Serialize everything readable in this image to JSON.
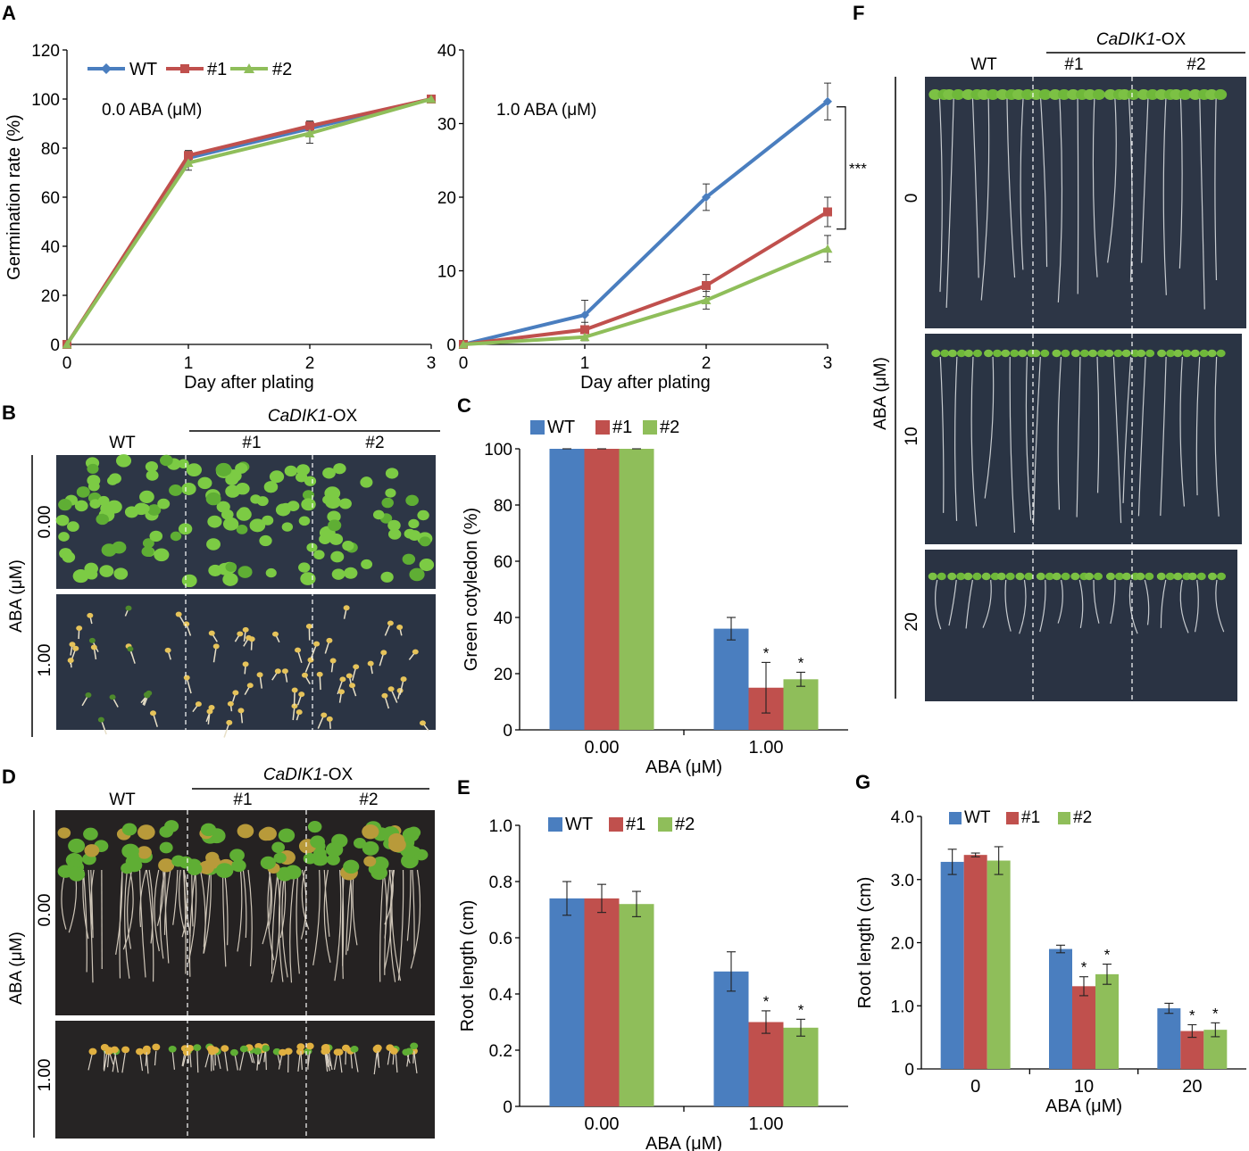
{
  "colors": {
    "wt": "#4a7ebf",
    "l1": "#c0504d",
    "l2": "#8fbe5a",
    "plate": "#2d3646",
    "plate_dark": "#262d3a",
    "seedling": "#6fbf3a",
    "root": "#dcdcdc",
    "yellow": "#e6c35a"
  },
  "panel_letters": {
    "a": "A",
    "b": "B",
    "c": "C",
    "d": "D",
    "e": "E",
    "f": "F",
    "g": "G"
  },
  "legend": {
    "wt": "WT",
    "l1": "#1",
    "l2": "#2"
  },
  "photo_b": {
    "transgene": "CaDIK1",
    "suffix": "-OX",
    "col_wt": "WT",
    "col_1": "#1",
    "col_2": "#2",
    "ylabel": "ABA (μM)",
    "row_top": "0.00",
    "row_bottom": "1.00"
  },
  "photo_d": {
    "transgene": "CaDIK1",
    "suffix": "-OX",
    "col_wt": "WT",
    "col_1": "#1",
    "col_2": "#2",
    "ylabel": "ABA (μM)",
    "row_top": "0.00",
    "row_bottom": "1.00"
  },
  "photo_f": {
    "transgene": "CaDIK1",
    "suffix": "-OX",
    "col_wt": "WT",
    "col_1": "#1",
    "col_2": "#2",
    "ylabel": "ABA (μM)",
    "row_1": "0",
    "row_2": "10",
    "row_3": "20"
  },
  "chart_data": [
    {
      "id": "A1",
      "type": "line",
      "annotation": "0.0 ABA (μM)",
      "xlabel": "Day after plating",
      "ylabel": "Germination rate (%)",
      "x": [
        0,
        1,
        2,
        3
      ],
      "xlim": [
        0,
        3
      ],
      "ylim": [
        0,
        120
      ],
      "yticks": [
        0,
        20,
        40,
        60,
        80,
        100,
        120
      ],
      "series": [
        {
          "name": "WT",
          "values": [
            0,
            76,
            88,
            100
          ],
          "errors": [
            0,
            3,
            3,
            0
          ]
        },
        {
          "name": "#1",
          "values": [
            0,
            77,
            89,
            100
          ],
          "errors": [
            0,
            2,
            2,
            0
          ]
        },
        {
          "name": "#2",
          "values": [
            0,
            74,
            86,
            100
          ],
          "errors": [
            0,
            3,
            4,
            1
          ]
        }
      ]
    },
    {
      "id": "A2",
      "type": "line",
      "annotation": "1.0 ABA (μM)",
      "xlabel": "Day after plating",
      "ylabel": "",
      "x": [
        0,
        1,
        2,
        3
      ],
      "xlim": [
        0,
        3
      ],
      "ylim": [
        0,
        40
      ],
      "yticks": [
        0,
        10,
        20,
        30,
        40
      ],
      "significance": "***",
      "series": [
        {
          "name": "WT",
          "values": [
            0,
            4,
            20,
            33
          ],
          "errors": [
            0,
            2,
            1.8,
            2.5
          ]
        },
        {
          "name": "#1",
          "values": [
            0,
            2,
            8,
            18
          ],
          "errors": [
            0,
            1,
            1.5,
            2
          ]
        },
        {
          "name": "#2",
          "values": [
            0,
            1,
            6,
            13
          ],
          "errors": [
            0,
            0.5,
            1.2,
            1.8
          ]
        }
      ]
    },
    {
      "id": "C",
      "type": "bar",
      "xlabel": "ABA (μM)",
      "ylabel": "Green cotyledon (%)",
      "categories": [
        "0.00",
        "1.00"
      ],
      "ylim": [
        0,
        100
      ],
      "yticks": [
        0,
        20,
        40,
        60,
        80,
        100
      ],
      "series": [
        {
          "name": "WT",
          "values": [
            100,
            36
          ],
          "errors": [
            0,
            4
          ]
        },
        {
          "name": "#1",
          "values": [
            100,
            15
          ],
          "errors": [
            0,
            9
          ]
        },
        {
          "name": "#2",
          "values": [
            100,
            18
          ],
          "errors": [
            0,
            2.5
          ]
        }
      ],
      "significance": [
        [
          "",
          ""
        ],
        [
          "",
          "*"
        ],
        [
          "",
          "*"
        ]
      ]
    },
    {
      "id": "E",
      "type": "bar",
      "xlabel": "ABA (μM)",
      "ylabel": "Root length (cm)",
      "categories": [
        "0.00",
        "1.00"
      ],
      "ylim": [
        0,
        1.0
      ],
      "yticks": [
        "0",
        "0.2",
        "0.4",
        "0.6",
        "0.8",
        "1.0"
      ],
      "series": [
        {
          "name": "WT",
          "values": [
            0.74,
            0.48
          ],
          "errors": [
            0.06,
            0.07
          ]
        },
        {
          "name": "#1",
          "values": [
            0.74,
            0.3
          ],
          "errors": [
            0.05,
            0.04
          ]
        },
        {
          "name": "#2",
          "values": [
            0.72,
            0.28
          ],
          "errors": [
            0.045,
            0.03
          ]
        }
      ],
      "significance": [
        [
          "",
          ""
        ],
        [
          "",
          "*"
        ],
        [
          "",
          "*"
        ]
      ]
    },
    {
      "id": "G",
      "type": "bar",
      "xlabel": "ABA (μM)",
      "ylabel": "Root length (cm)",
      "categories": [
        "0",
        "10",
        "20"
      ],
      "ylim": [
        0,
        4.0
      ],
      "yticks": [
        "0",
        "1.0",
        "2.0",
        "3.0",
        "4.0"
      ],
      "series": [
        {
          "name": "WT",
          "values": [
            3.28,
            1.9,
            0.96
          ],
          "errors": [
            0.2,
            0.06,
            0.08
          ]
        },
        {
          "name": "#1",
          "values": [
            3.39,
            1.31,
            0.6
          ],
          "errors": [
            0.03,
            0.15,
            0.1
          ]
        },
        {
          "name": "#2",
          "values": [
            3.3,
            1.5,
            0.62
          ],
          "errors": [
            0.22,
            0.16,
            0.11
          ]
        }
      ],
      "significance": [
        [
          "",
          "",
          ""
        ],
        [
          "",
          "*",
          "*"
        ],
        [
          "",
          "*",
          "*"
        ]
      ]
    }
  ]
}
